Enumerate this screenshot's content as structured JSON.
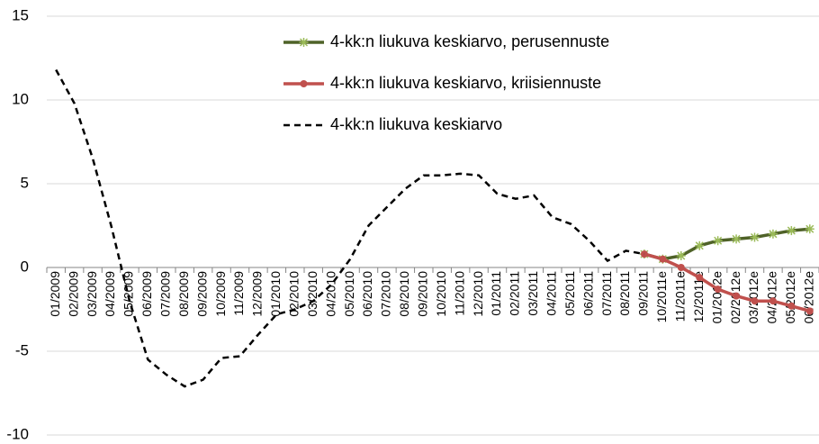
{
  "chart_data": {
    "type": "line",
    "categories": [
      "01/2009",
      "02/2009",
      "03/2009",
      "04/2009",
      "05/2009",
      "06/2009",
      "07/2009",
      "08/2009",
      "09/2009",
      "10/2009",
      "11/2009",
      "12/2009",
      "01/2010",
      "02/2010",
      "03/2010",
      "04/2010",
      "05/2010",
      "06/2010",
      "07/2010",
      "08/2010",
      "09/2010",
      "10/2010",
      "11/2010",
      "12/2010",
      "01/2011",
      "02/2011",
      "03/2011",
      "04/2011",
      "05/2011",
      "06/2011",
      "07/2011",
      "08/2011",
      "09/2011",
      "10/2011e",
      "11/2011e",
      "12/2011e",
      "01/2012e",
      "02/2012e",
      "03/2012e",
      "04/2012e",
      "05/2012e",
      "06/2012e"
    ],
    "series": [
      {
        "name": "4-kk:n liukuva keskiarvo, perusennuste",
        "color": "#4f6228",
        "marker": "star",
        "line_style": "solid",
        "values": [
          null,
          null,
          null,
          null,
          null,
          null,
          null,
          null,
          null,
          null,
          null,
          null,
          null,
          null,
          null,
          null,
          null,
          null,
          null,
          null,
          null,
          null,
          null,
          null,
          null,
          null,
          null,
          null,
          null,
          null,
          null,
          null,
          0.8,
          0.5,
          0.7,
          1.3,
          1.6,
          1.7,
          1.8,
          2.0,
          2.2,
          2.3
        ]
      },
      {
        "name": "4-kk:n liukuva keskiarvo, kriisiennuste",
        "color": "#c0504d",
        "marker": "circle",
        "line_style": "solid",
        "values": [
          null,
          null,
          null,
          null,
          null,
          null,
          null,
          null,
          null,
          null,
          null,
          null,
          null,
          null,
          null,
          null,
          null,
          null,
          null,
          null,
          null,
          null,
          null,
          null,
          null,
          null,
          null,
          null,
          null,
          null,
          null,
          null,
          0.8,
          0.5,
          0.0,
          -0.6,
          -1.3,
          -1.7,
          -2.0,
          -2.0,
          -2.3,
          -2.6
        ]
      },
      {
        "name": "4-kk:n liukuva keskiarvo",
        "color": "#000000",
        "marker": "none",
        "line_style": "dashed",
        "values": [
          11.8,
          9.8,
          6.5,
          2.5,
          -2.0,
          -5.5,
          -6.4,
          -7.1,
          -6.7,
          -5.4,
          -5.3,
          -4.0,
          -2.8,
          -2.5,
          -2.0,
          -1.0,
          0.5,
          2.5,
          3.6,
          4.7,
          5.5,
          5.5,
          5.6,
          5.5,
          4.4,
          4.1,
          4.3,
          3.0,
          2.6,
          1.6,
          0.4,
          1.0,
          0.8,
          null,
          null,
          null,
          null,
          null,
          null,
          null,
          null,
          null
        ]
      }
    ],
    "ylim": [
      -10,
      15
    ],
    "yticks": [
      -10,
      -5,
      0,
      5,
      10,
      15
    ],
    "grid": true
  }
}
